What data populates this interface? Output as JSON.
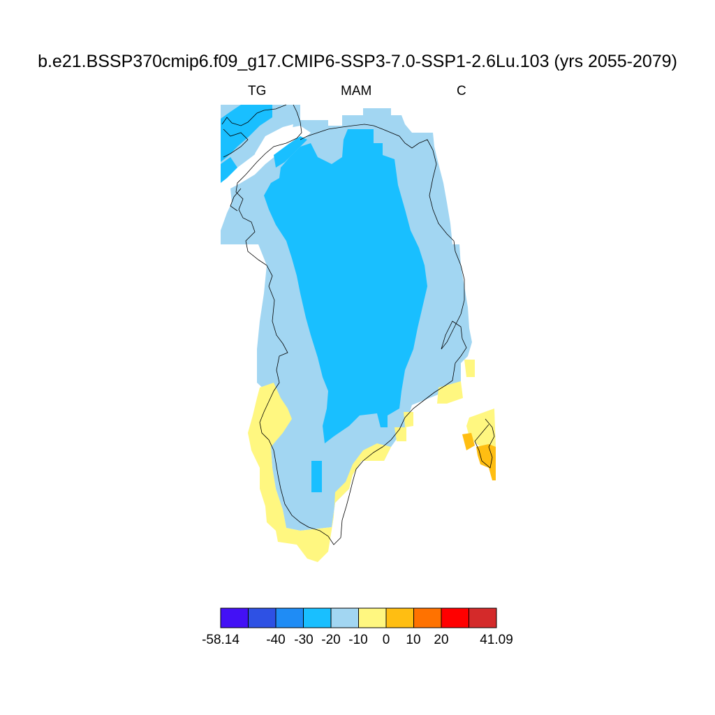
{
  "title": "b.e21.BSSP370cmip6.f09_g17.CMIP6-SSP3-7.0-SSP1-2.6Lu.103 (yrs 2055-2079)",
  "subtitle_left": "TG",
  "subtitle_center": "MAM",
  "subtitle_right": "C",
  "colorbar": {
    "colors": [
      "#4311f5",
      "#2e51e4",
      "#1f8cf5",
      "#19bfff",
      "#a2d6f2",
      "#fff780",
      "#ffbe12",
      "#ff7200",
      "#ff0000",
      "#d42a2a"
    ],
    "tick_labels": [
      "-58.14",
      "-40",
      "-30",
      "-20",
      "-10",
      "0",
      "10",
      "20",
      "41.09"
    ]
  },
  "map_region_colors": {
    "interior": "#19bfff",
    "margin": "#a2d6f2",
    "south_coast": "#fff780",
    "iceland_warm": "#ffbe12"
  }
}
